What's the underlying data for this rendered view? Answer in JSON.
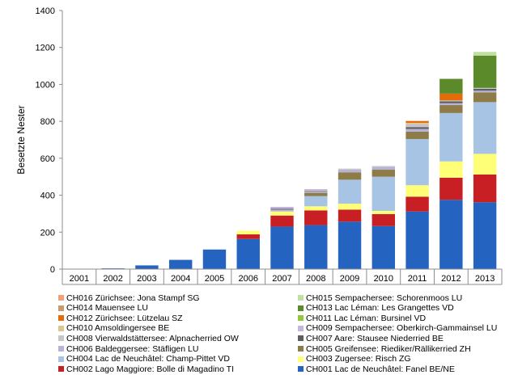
{
  "chart_data": {
    "type": "bar",
    "stacked": true,
    "title": "",
    "xlabel": "",
    "ylabel": "Besetzte Nester",
    "ylim": [
      0,
      1400
    ],
    "yticks": [
      0,
      200,
      400,
      600,
      800,
      1000,
      1200,
      1400
    ],
    "grid": false,
    "legend_position": "bottom",
    "categories": [
      "2001",
      "2002",
      "2003",
      "2004",
      "2005",
      "2006",
      "2007",
      "2008",
      "2009",
      "2010",
      "2011",
      "2012",
      "2013"
    ],
    "series": [
      {
        "name": "CH001 Lac de Neuchâtel: Fanel BE/NE",
        "color": "#2463c0",
        "values": [
          0,
          4,
          20,
          50,
          106,
          163,
          230,
          238,
          257,
          233,
          312,
          375,
          362
        ]
      },
      {
        "name": "CH002 Lago Maggiore: Bolle di Magadino TI",
        "color": "#c81f25",
        "values": [
          0,
          0,
          0,
          0,
          0,
          25,
          60,
          80,
          65,
          65,
          80,
          120,
          150
        ]
      },
      {
        "name": "CH003 Zugersee: Risch ZG",
        "color": "#ffff77",
        "values": [
          0,
          0,
          0,
          0,
          0,
          20,
          22,
          22,
          32,
          17,
          62,
          88,
          112
        ]
      },
      {
        "name": "CH004 Lac de Neuchâtel: Champ-Pittet VD",
        "color": "#a7c4e4",
        "values": [
          0,
          0,
          0,
          0,
          0,
          0,
          0,
          55,
          130,
          185,
          250,
          262,
          280
        ]
      },
      {
        "name": "CH005 Greifensee: Riediker/Rällikerried ZH",
        "color": "#8e7c48",
        "values": [
          0,
          0,
          0,
          0,
          0,
          0,
          0,
          18,
          40,
          38,
          40,
          43,
          52
        ]
      },
      {
        "name": "CH006 Baldeggersee: Stäfligen LU",
        "color": "#b8b2d6",
        "values": [
          0,
          0,
          0,
          0,
          0,
          0,
          10,
          7,
          15,
          15,
          15,
          10,
          10
        ]
      },
      {
        "name": "CH007 Aare: Stausee Niederried BE",
        "color": "#5e5e5e",
        "values": [
          0,
          0,
          0,
          0,
          0,
          0,
          5,
          3,
          0,
          0,
          10,
          10,
          10
        ]
      },
      {
        "name": "CH008 Vierwaldstättersee: Alpnacherried OW",
        "color": "#c6c6c6",
        "values": [
          0,
          0,
          0,
          0,
          0,
          0,
          0,
          5,
          5,
          5,
          10,
          5,
          5
        ]
      },
      {
        "name": "CH009 Sempachersee: Oberkirch-Gammainsel LU",
        "color": "#c3b5dc",
        "values": [
          0,
          0,
          0,
          0,
          0,
          0,
          10,
          5,
          0,
          0,
          5,
          0,
          0
        ]
      },
      {
        "name": "CH010 Amsoldingersee BE",
        "color": "#dbc78c",
        "values": [
          0,
          0,
          0,
          0,
          0,
          0,
          0,
          0,
          0,
          0,
          8,
          0,
          0
        ]
      },
      {
        "name": "CH011 Lac Léman: Bursinel VD",
        "color": "#92c83e",
        "values": [
          0,
          0,
          0,
          0,
          0,
          0,
          0,
          0,
          0,
          0,
          0,
          0,
          0
        ]
      },
      {
        "name": "CH012 Zürichsee: Lützelau SZ",
        "color": "#e36c0a",
        "values": [
          0,
          0,
          0,
          0,
          0,
          0,
          0,
          0,
          0,
          0,
          10,
          37,
          0
        ]
      },
      {
        "name": "CH013 Lac Léman: Les Grangettes VD",
        "color": "#5b8a2a",
        "values": [
          0,
          0,
          0,
          0,
          0,
          0,
          0,
          0,
          0,
          0,
          0,
          80,
          175
        ]
      },
      {
        "name": "CH014 Mauensee LU",
        "color": "#c89a6e",
        "values": [
          0,
          0,
          0,
          0,
          0,
          0,
          0,
          0,
          0,
          0,
          0,
          0,
          0
        ]
      },
      {
        "name": "CH015 Sempachersee: Schorenmoos LU",
        "color": "#c2dfa2",
        "values": [
          0,
          0,
          0,
          0,
          0,
          0,
          0,
          0,
          0,
          0,
          0,
          0,
          20
        ]
      },
      {
        "name": "CH016 Zürichsee: Jona Stampf SG",
        "color": "#f2a07a",
        "values": [
          0,
          0,
          0,
          0,
          0,
          0,
          0,
          0,
          0,
          0,
          0,
          0,
          0
        ]
      }
    ],
    "legend_order": [
      "CH016 Zürichsee: Jona Stampf SG",
      "CH015 Sempachersee: Schorenmoos LU",
      "CH014 Mauensee LU",
      "CH013 Lac Léman: Les Grangettes VD",
      "CH012 Zürichsee: Lützelau SZ",
      "CH011 Lac Léman: Bursinel VD",
      "CH010 Amsoldingersee BE",
      "CH009 Sempachersee: Oberkirch-Gammainsel LU",
      "CH008 Vierwaldstättersee: Alpnacherried OW",
      "CH007 Aare: Stausee Niederried BE",
      "CH006 Baldeggersee: Stäfligen LU",
      "CH005 Greifensee: Riediker/Rällikerried ZH",
      "CH004 Lac de Neuchâtel: Champ-Pittet VD",
      "CH003 Zugersee: Risch ZG",
      "CH002 Lago Maggiore: Bolle di Magadino TI",
      "CH001 Lac de Neuchâtel: Fanel BE/NE"
    ]
  }
}
